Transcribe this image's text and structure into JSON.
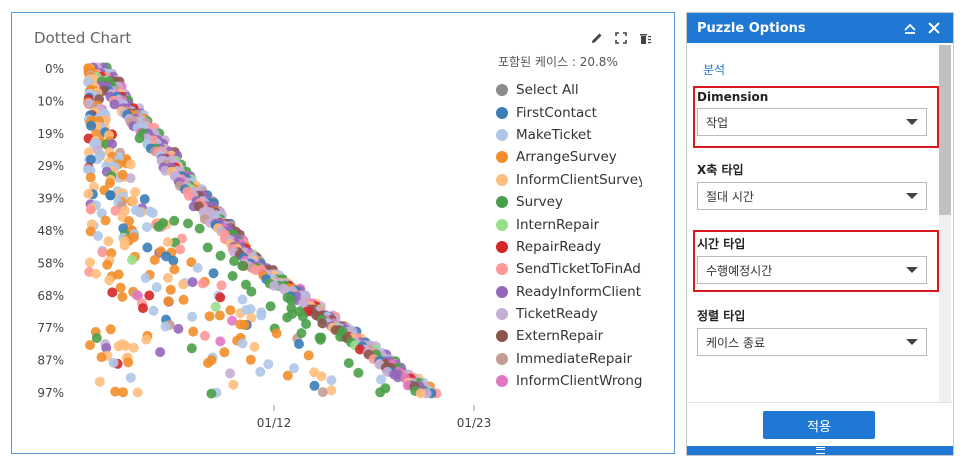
{
  "chart_panel": {
    "title": "Dotted Chart",
    "ratio_text": "포함된 케이스 : 20.8%",
    "tools": [
      "edit-icon",
      "fullscreen-icon",
      "trash-icon"
    ]
  },
  "legend": [
    {
      "label": "Select All",
      "color": "#8c8c8c"
    },
    {
      "label": "FirstContact",
      "color": "#3a7db7"
    },
    {
      "label": "MakeTicket",
      "color": "#aec7e8"
    },
    {
      "label": "ArrangeSurvey",
      "color": "#f28e2b"
    },
    {
      "label": "InformClientSurvey",
      "color": "#ffbe7d"
    },
    {
      "label": "Survey",
      "color": "#4aa04a"
    },
    {
      "label": "InternRepair",
      "color": "#98df8a"
    },
    {
      "label": "RepairReady",
      "color": "#d62728"
    },
    {
      "label": "SendTicketToFinAdmin",
      "color": "#ff9896"
    },
    {
      "label": "ReadyInformClient",
      "color": "#9467bd"
    },
    {
      "label": "TicketReady",
      "color": "#c5b0d5"
    },
    {
      "label": "ExternRepair",
      "color": "#8c564b"
    },
    {
      "label": "ImmediateRepair",
      "color": "#c49c94"
    },
    {
      "label": "InformClientWrongPlace",
      "color": "#e377c2"
    }
  ],
  "chart_data": {
    "type": "scatter",
    "title": "Dotted Chart",
    "xlabel": "",
    "ylabel": "",
    "x_tick_labels": [
      "01/12",
      "01/23"
    ],
    "y_tick_labels": [
      "0%",
      "10%",
      "19%",
      "29%",
      "39%",
      "48%",
      "58%",
      "68%",
      "77%",
      "87%",
      "97%"
    ],
    "ylim": [
      0,
      100
    ],
    "grid": false,
    "legend_position": "right",
    "series": [
      {
        "name": "FirstContact",
        "color": "#3a7db7"
      },
      {
        "name": "MakeTicket",
        "color": "#aec7e8"
      },
      {
        "name": "ArrangeSurvey",
        "color": "#f28e2b"
      },
      {
        "name": "InformClientSurvey",
        "color": "#ffbe7d"
      },
      {
        "name": "Survey",
        "color": "#4aa04a"
      },
      {
        "name": "InternRepair",
        "color": "#98df8a"
      },
      {
        "name": "RepairReady",
        "color": "#d62728"
      },
      {
        "name": "SendTicketToFinAdmin",
        "color": "#ff9896"
      },
      {
        "name": "ReadyInformClient",
        "color": "#9467bd"
      },
      {
        "name": "TicketReady",
        "color": "#c5b0d5"
      },
      {
        "name": "ExternRepair",
        "color": "#8c564b"
      },
      {
        "name": "ImmediateRepair",
        "color": "#c49c94"
      },
      {
        "name": "InformClientWrongPlace",
        "color": "#e377c2"
      }
    ]
  },
  "options": {
    "title": "Puzzle Options",
    "section_link": "분석",
    "fields": [
      {
        "label": "Dimension",
        "value": "작업",
        "highlighted": true
      },
      {
        "label": "X축 타입",
        "value": "절대 시간",
        "highlighted": false
      },
      {
        "label": "시간 타입",
        "value": "수행예정시간",
        "highlighted": true
      },
      {
        "label": "정렬 타입",
        "value": "케이스 종료",
        "highlighted": false
      }
    ],
    "apply_label": "적용"
  }
}
